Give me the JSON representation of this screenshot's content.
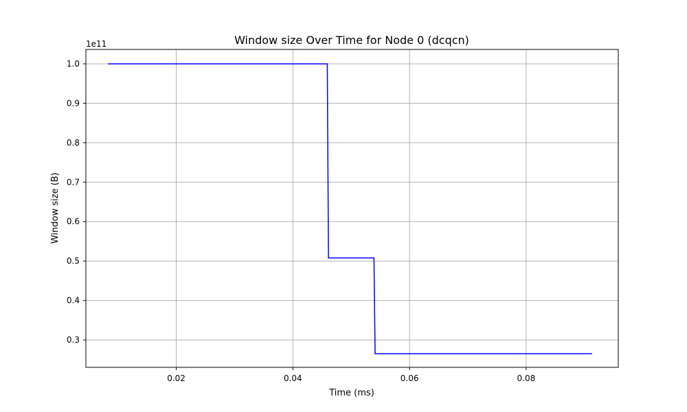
{
  "chart_data": {
    "type": "line",
    "title": "Window size Over Time for Node 0 (dcqcn)",
    "xlabel": "Time (ms)",
    "ylabel": "Window size (B)",
    "y_offset_text": "1e11",
    "x_ticks": [
      0.02,
      0.04,
      0.06,
      0.08
    ],
    "x_tick_labels": [
      "0.02",
      "0.04",
      "0.06",
      "0.08"
    ],
    "y_ticks": [
      0.3,
      0.4,
      0.5,
      0.6,
      0.7,
      0.8,
      0.9,
      1.0
    ],
    "y_tick_labels": [
      "0.3",
      "0.4",
      "0.5",
      "0.6",
      "0.7",
      "0.8",
      "0.9",
      "1.0"
    ],
    "xlim": [
      0.0045,
      0.0958
    ],
    "ylim": [
      0.2305,
      1.0365
    ],
    "grid": true,
    "legend": false,
    "series": [
      {
        "color": "#0000ff",
        "x": [
          0.0083,
          0.0459,
          0.0461,
          0.0539,
          0.0541,
          0.0913
        ],
        "y": [
          1.0,
          1.0,
          0.508,
          0.508,
          0.265,
          0.265
        ]
      }
    ]
  }
}
